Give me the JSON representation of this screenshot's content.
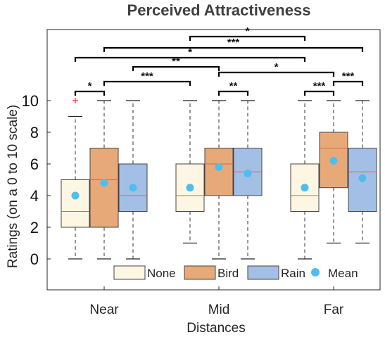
{
  "chart_data": {
    "type": "box",
    "title": "Perceived Attractiveness",
    "xlabel": "Distances",
    "ylabel": "Ratings (on a 0 to 10 scale)",
    "ylim": [
      -2.2,
      15
    ],
    "yticks": [
      0,
      2,
      4,
      6,
      8,
      10
    ],
    "categories": [
      "Near",
      "Mid",
      "Far"
    ],
    "series": [
      {
        "name": "None",
        "color": "#fdf6e3",
        "boxes": [
          {
            "min": 0,
            "q1": 2,
            "median": 3,
            "q3": 5,
            "max": 9,
            "mean": 4.0,
            "outliers": [
              10
            ]
          },
          {
            "min": 1,
            "q1": 3,
            "median": 4,
            "q3": 6,
            "max": 10,
            "mean": 4.5,
            "outliers": []
          },
          {
            "min": 0,
            "q1": 3,
            "median": 4,
            "q3": 6,
            "max": 10,
            "mean": 4.5,
            "outliers": []
          }
        ]
      },
      {
        "name": "Bird",
        "color": "#e8a978",
        "boxes": [
          {
            "min": 0,
            "q1": 2,
            "median": 5,
            "q3": 7,
            "max": 10,
            "mean": 4.8,
            "outliers": []
          },
          {
            "min": 0,
            "q1": 4,
            "median": 6,
            "q3": 7,
            "max": 10,
            "mean": 5.8,
            "outliers": []
          },
          {
            "min": 1,
            "q1": 4.5,
            "median": 7,
            "q3": 8,
            "max": 10,
            "mean": 6.2,
            "outliers": []
          }
        ]
      },
      {
        "name": "Rain",
        "color": "#a4bfe6",
        "boxes": [
          {
            "min": 0,
            "q1": 3,
            "median": 4,
            "q3": 6,
            "max": 10,
            "mean": 4.5,
            "outliers": []
          },
          {
            "min": 0,
            "q1": 4,
            "median": 5.5,
            "q3": 7,
            "max": 10,
            "mean": 5.4,
            "outliers": []
          },
          {
            "min": 1,
            "q1": 3,
            "median": 5.5,
            "q3": 7,
            "max": 10,
            "mean": 5.1,
            "outliers": []
          }
        ]
      }
    ],
    "legend": {
      "placement": "bottom",
      "entries": [
        "None",
        "Bird",
        "Rain",
        "Mean"
      ],
      "mean_label": "Mean"
    },
    "colors": {
      "mean": "#4dbeee",
      "median": "#e0604a",
      "outlier": "#e03030",
      "box_edge": "#444444"
    },
    "significance": [
      {
        "from": [
          1,
          0
        ],
        "to": [
          2,
          0
        ],
        "label": "*"
      },
      {
        "from": [
          0,
          1
        ],
        "to": [
          2,
          2
        ],
        "label": "***"
      },
      {
        "from": [
          0,
          0
        ],
        "to": [
          2,
          0
        ],
        "label": "*"
      },
      {
        "from": [
          0,
          2
        ],
        "to": [
          1,
          1
        ],
        "label": "**"
      },
      {
        "from": [
          0,
          1
        ],
        "to": [
          1,
          0
        ],
        "label": "***"
      },
      {
        "from": [
          1,
          1
        ],
        "to": [
          2,
          1
        ],
        "label": "*"
      },
      {
        "from": [
          0,
          0
        ],
        "to": [
          0,
          1
        ],
        "label": "*"
      },
      {
        "from": [
          1,
          1
        ],
        "to": [
          1,
          2
        ],
        "label": "**"
      },
      {
        "from": [
          2,
          0
        ],
        "to": [
          2,
          1
        ],
        "label": "***"
      },
      {
        "from": [
          2,
          1
        ],
        "to": [
          2,
          2
        ],
        "label": "***"
      }
    ]
  }
}
